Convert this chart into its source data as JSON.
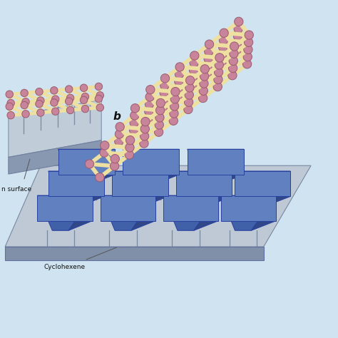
{
  "bg_color": "#cfe3f0",
  "atom_color": "#c8849a",
  "atom_edge_color": "#9a5a70",
  "bond_color": "#ede0a0",
  "bond_edge_color": "#c8b060",
  "surf_top_color": "#b8c8d5",
  "surf_side_color": "#8090a8",
  "surf_edge_color": "#7080a0",
  "blue_front_color": "#4060a8",
  "blue_top_color": "#6080c0",
  "blue_right_color": "#304888",
  "blue_edge_color": "#2840a0",
  "base_top_color": "#c0ccd8",
  "base_side_color": "#8898b0",
  "spike_color": "#7888a0",
  "label_b": "b",
  "label_surface": "n surface",
  "label_cyclohexene": "Cyclohexene",
  "text_color": "#111111"
}
